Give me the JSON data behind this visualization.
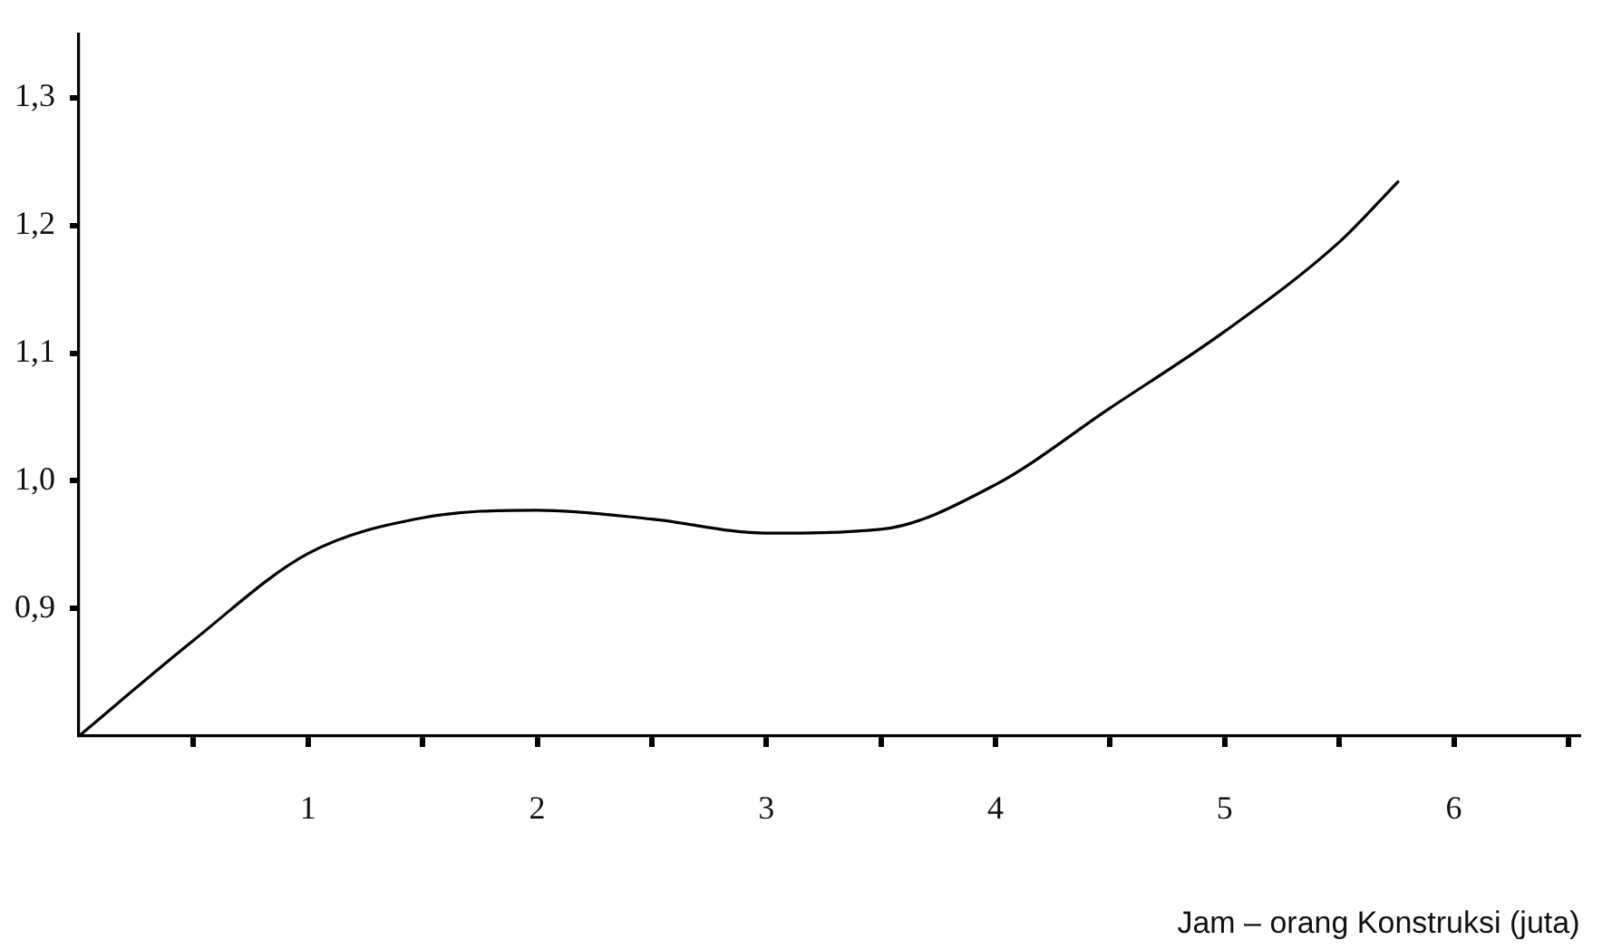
{
  "chart_data": {
    "type": "line",
    "xlabel": "Jam – orang Konstruksi (juta)",
    "x": [
      0,
      0.5,
      1,
      1.5,
      2,
      2.5,
      3,
      3.5,
      4,
      4.5,
      5,
      5.5,
      5.76
    ],
    "series": [
      {
        "color": "#000000",
        "values": [
          0.8,
          0.875,
          0.943,
          0.971,
          0.977,
          0.97,
          0.959,
          0.962,
          0.997,
          1.057,
          1.117,
          1.187,
          1.235
        ]
      }
    ],
    "xlim": [
      0,
      6.55
    ],
    "ylim": [
      0.8,
      1.35
    ],
    "xticks": [
      {
        "value": 0.5,
        "label": null
      },
      1,
      {
        "value": 1.5,
        "label": null
      },
      2,
      {
        "value": 2.5,
        "label": null
      },
      3,
      {
        "value": 3.5,
        "label": null
      },
      4,
      {
        "value": 4.5,
        "label": null
      },
      5,
      {
        "value": 5.5,
        "label": null
      },
      6,
      {
        "value": 6.5,
        "label": null
      }
    ],
    "yticks": [
      {
        "value": 0.9,
        "label": "0,9"
      },
      {
        "value": 1.0,
        "label": "1,0"
      },
      {
        "value": 1.1,
        "label": "1,1"
      },
      {
        "value": 1.2,
        "label": "1,2"
      },
      {
        "value": 1.3,
        "label": "1,3"
      }
    ],
    "grid": false,
    "legend": false,
    "marker": "none",
    "line_style": "solid"
  }
}
